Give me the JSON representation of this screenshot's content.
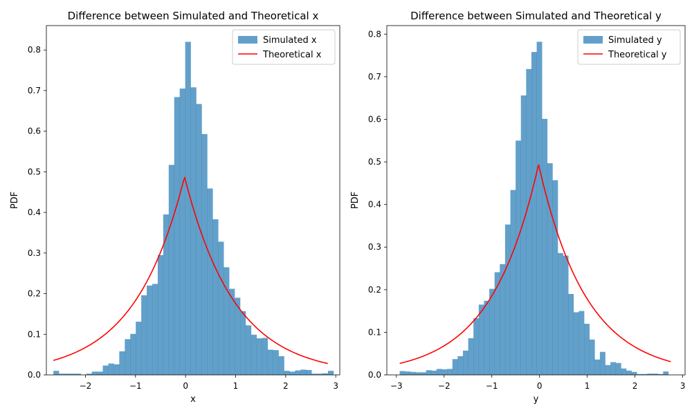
{
  "chart_data": [
    {
      "type": "histogram",
      "title": "Difference between Simulated and Theoretical x",
      "xlabel": "x",
      "ylabel": "PDF",
      "xlim": [
        -2.78,
        3.08
      ],
      "ylim": [
        0,
        0.86
      ],
      "xticks": [
        -2,
        -1,
        0,
        1,
        2,
        3
      ],
      "xtick_labels": [
        "−2",
        "−1",
        "0",
        "1",
        "2",
        "3"
      ],
      "yticks": [
        0.0,
        0.1,
        0.2,
        0.3,
        0.4,
        0.5,
        0.6,
        0.7,
        0.8
      ],
      "ytick_labels": [
        "0.0",
        "0.1",
        "0.2",
        "0.3",
        "0.4",
        "0.5",
        "0.6",
        "0.7",
        "0.8"
      ],
      "legend_position": "top-right",
      "series": [
        {
          "name": "Simulated x",
          "kind": "bars",
          "color": "#1f77b4",
          "alpha": 0.7,
          "bin_start": -2.64,
          "bin_width": 0.1097,
          "values": [
            0.01,
            0.003,
            0.003,
            0.003,
            0.003,
            0.0,
            0.003,
            0.008,
            0.008,
            0.023,
            0.028,
            0.026,
            0.058,
            0.088,
            0.101,
            0.131,
            0.196,
            0.22,
            0.224,
            0.295,
            0.395,
            0.517,
            0.684,
            0.705,
            0.82,
            0.708,
            0.667,
            0.593,
            0.459,
            0.383,
            0.328,
            0.265,
            0.212,
            0.19,
            0.157,
            0.122,
            0.099,
            0.09,
            0.091,
            0.062,
            0.061,
            0.046,
            0.01,
            0.008,
            0.011,
            0.013,
            0.012,
            0.003,
            0.003,
            0.004,
            0.01
          ]
        },
        {
          "name": "Theoretical x",
          "kind": "laplace_line",
          "color": "#ff0000",
          "peak_x": -0.02,
          "peak_y": 0.488,
          "x_start": -2.64,
          "x_end": 2.84
        }
      ]
    },
    {
      "type": "histogram",
      "title": "Difference between Simulated and Theoretical y",
      "xlabel": "y",
      "ylabel": "PDF",
      "xlim": [
        -3.2,
        3.05
      ],
      "ylim": [
        0,
        0.82
      ],
      "xticks": [
        -3,
        -2,
        -1,
        0,
        1,
        2,
        3
      ],
      "xtick_labels": [
        "−3",
        "−2",
        "−1",
        "0",
        "1",
        "2",
        "3"
      ],
      "yticks": [
        0.0,
        0.1,
        0.2,
        0.3,
        0.4,
        0.5,
        0.6,
        0.7,
        0.8
      ],
      "ytick_labels": [
        "0.0",
        "0.1",
        "0.2",
        "0.3",
        "0.4",
        "0.5",
        "0.6",
        "0.7",
        "0.8"
      ],
      "legend_position": "top-right",
      "series": [
        {
          "name": "Simulated y",
          "kind": "bars",
          "color": "#1f77b4",
          "alpha": 0.7,
          "bin_start": -2.93,
          "bin_width": 0.1104,
          "values": [
            0.009,
            0.008,
            0.007,
            0.006,
            0.006,
            0.011,
            0.01,
            0.014,
            0.013,
            0.014,
            0.037,
            0.044,
            0.057,
            0.086,
            0.133,
            0.165,
            0.174,
            0.202,
            0.241,
            0.26,
            0.353,
            0.434,
            0.55,
            0.656,
            0.718,
            0.758,
            0.782,
            0.601,
            0.497,
            0.457,
            0.286,
            0.28,
            0.19,
            0.147,
            0.15,
            0.12,
            0.083,
            0.036,
            0.054,
            0.023,
            0.03,
            0.028,
            0.015,
            0.01,
            0.007,
            0.002,
            0.002,
            0.003,
            0.003,
            0.002,
            0.008
          ]
        },
        {
          "name": "Theoretical y",
          "kind": "laplace_line",
          "color": "#ff0000",
          "peak_x": -0.02,
          "peak_y": 0.494,
          "x_start": -2.93,
          "x_end": 2.75
        }
      ]
    }
  ]
}
